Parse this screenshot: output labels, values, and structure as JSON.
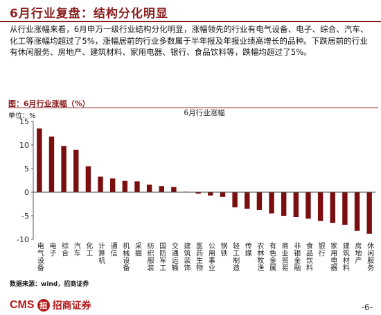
{
  "header": {
    "title": "6月行业复盘：结构分化明显"
  },
  "body": {
    "paragraph": "从行业涨幅来看，6月申万一级行业结构分化明显，涨幅领先的行业有电气设备、电子、综合、汽车、化工等涨幅均超过了5%，涨幅居前的行业多数属于半年报及年报业绩高增长的品种。下跌居前的行业有休闲服务、房地产、建筑材料、家用电器、银行、食品饮料等，跌幅均超过了5%。"
  },
  "figure": {
    "heading": "图：6月行业涨幅（%）",
    "unit": "单位：%",
    "source": "数据来源：wind，招商证券"
  },
  "chart_data": {
    "type": "bar",
    "title": "6月行业涨幅",
    "ylim": [
      -10,
      15
    ],
    "yticks": [
      "15",
      "10",
      "5",
      "0",
      "-5",
      "-10"
    ],
    "grid": false,
    "bar_color": "#7b0e0e",
    "categories": [
      "电气设备",
      "电子",
      "综合",
      "汽车",
      "化工",
      "计算机",
      "通信",
      "机械设备",
      "采掘",
      "纺织服装",
      "国防军工",
      "交通运输",
      "建筑装饰",
      "医药生物",
      "公用事业",
      "钢铁",
      "轻工制造",
      "传媒",
      "农林牧渔",
      "有色金属",
      "商业贸易",
      "非银金融",
      "食品饮料",
      "银行",
      "家用电器",
      "建筑材料",
      "房地产",
      "休闲服务"
    ],
    "values": [
      13.5,
      11.8,
      9.8,
      9.0,
      5.5,
      3.3,
      2.9,
      2.4,
      2.3,
      1.6,
      1.3,
      1.1,
      0.1,
      -0.3,
      -0.7,
      -1.0,
      -3.2,
      -3.5,
      -3.8,
      -4.5,
      -5.0,
      -5.3,
      -5.6,
      -6.1,
      -6.5,
      -6.9,
      -8.2,
      -8.8
    ]
  },
  "footer": {
    "logo_text": "CMS",
    "logo_mark": "招",
    "logo_name": "招商证券",
    "page": "-6-"
  }
}
